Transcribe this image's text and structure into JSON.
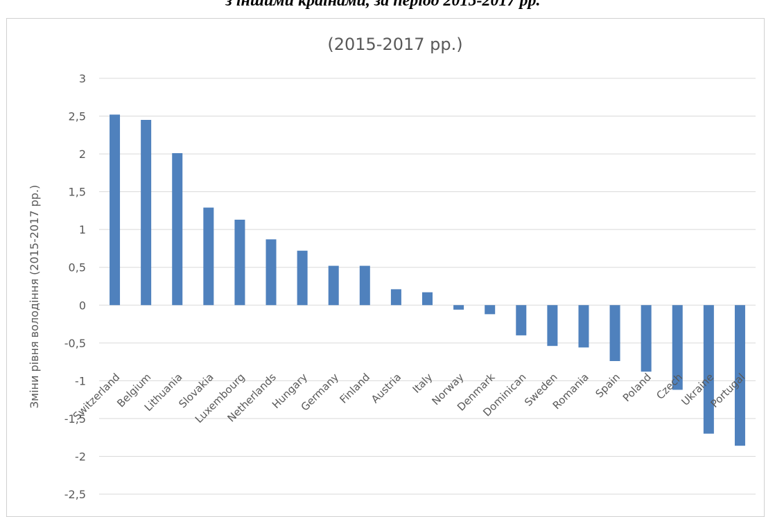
{
  "document": {
    "caption": "з іншими країнами, за період 2015-2017 рр."
  },
  "chart_data": {
    "type": "bar",
    "title": "(2015-2017 рр.)",
    "xlabel": "",
    "ylabel": "Зміни рівня володіння (2015-2017 рр.)",
    "ylim": [
      -2.5,
      3
    ],
    "ytick_step": 0.5,
    "ytick_labels": [
      "3",
      "2,5",
      "2",
      "1,5",
      "1",
      "0,5",
      "0",
      "-0,5",
      "-1",
      "-1,5",
      "-2",
      "-2,5"
    ],
    "grid": true,
    "bar_color": "#4f81bd",
    "categories": [
      "Switzerland",
      "Belgium",
      "Lithuania",
      "Slovakia",
      "Luxembourg",
      "Netherlands",
      "Hungary",
      "Germany",
      "Finland",
      "Austria",
      "Italy",
      "Norway",
      "Denmark",
      "Dominican",
      "Sweden",
      "Romania",
      "Spain",
      "Poland",
      "Czech",
      "Ukraine",
      "Portugal"
    ],
    "values": [
      2.52,
      2.45,
      2.01,
      1.29,
      1.13,
      0.87,
      0.72,
      0.52,
      0.52,
      0.21,
      0.17,
      -0.06,
      -0.12,
      -0.4,
      -0.54,
      -0.56,
      -0.74,
      -0.88,
      -1.12,
      -1.7,
      -1.86
    ]
  }
}
